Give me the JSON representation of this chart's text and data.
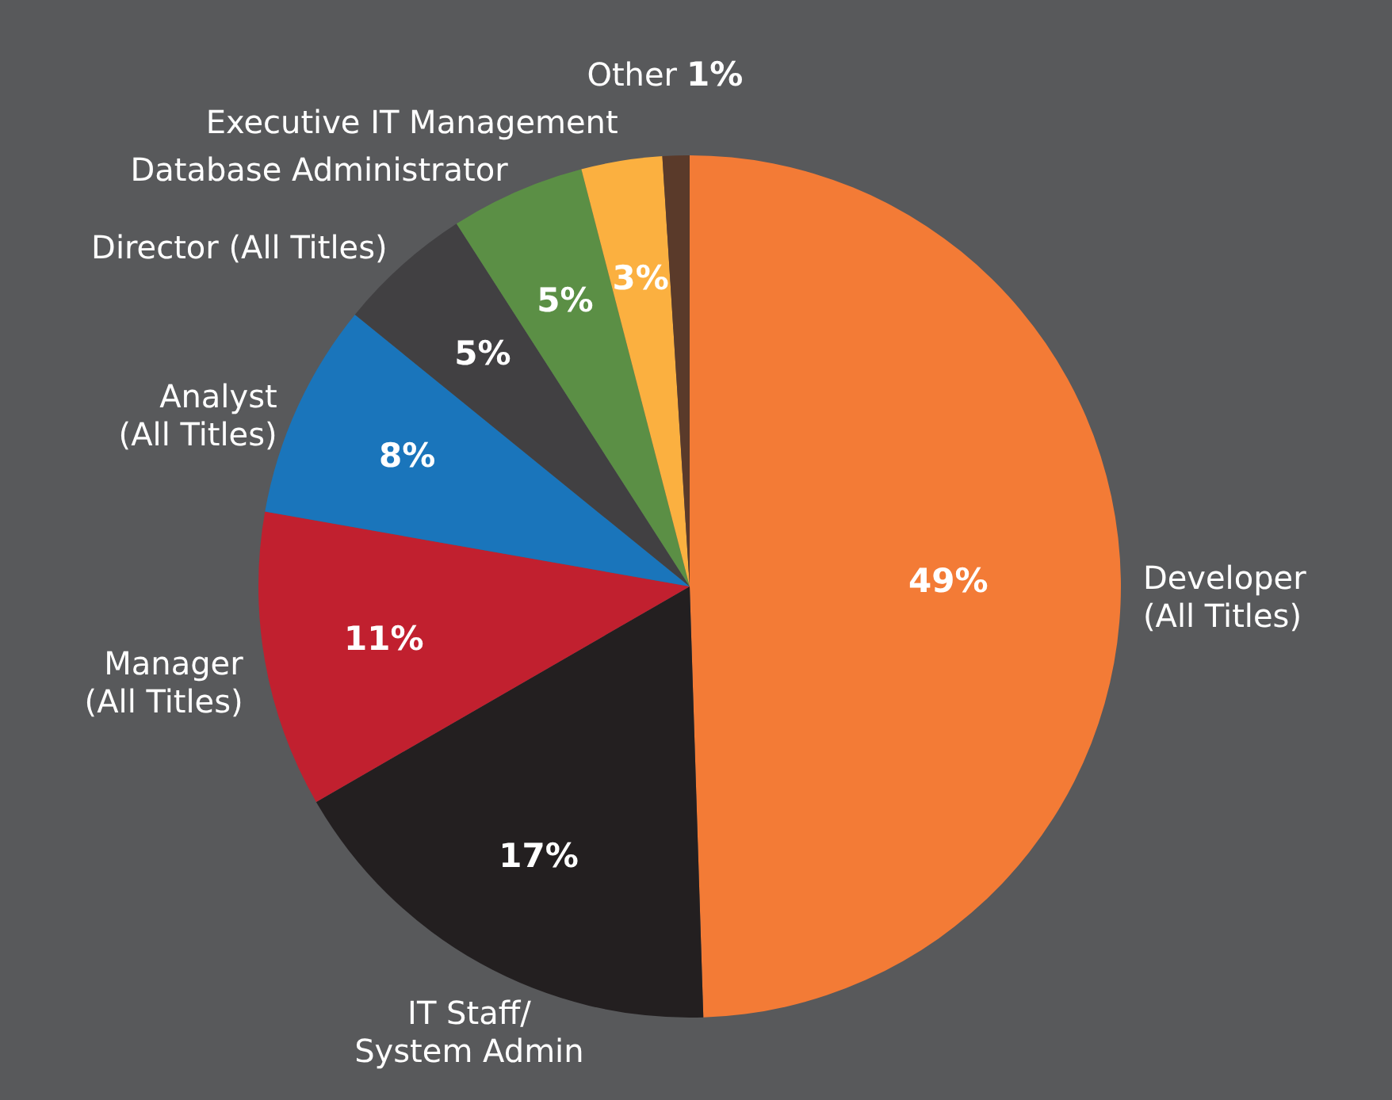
{
  "chart_data": {
    "type": "pie",
    "categories": [
      "Developer\n(All Titles)",
      "IT Staff/\nSystem Admin",
      "Manager\n(All Titles)",
      "Analyst\n(All Titles)",
      "Director (All Titles)",
      "Database Administrator",
      "Executive IT Management",
      "Other"
    ],
    "values": [
      49,
      17,
      11,
      8,
      5,
      5,
      3,
      1
    ],
    "value_labels": [
      "49%",
      "17%",
      "11%",
      "8%",
      "5%",
      "5%",
      "3%",
      "1%"
    ],
    "colors": [
      "#f37b36",
      "#231f20",
      "#c1202f",
      "#1a75bb",
      "#414042",
      "#5b8f45",
      "#fbb040",
      "#5a3a2a"
    ]
  }
}
